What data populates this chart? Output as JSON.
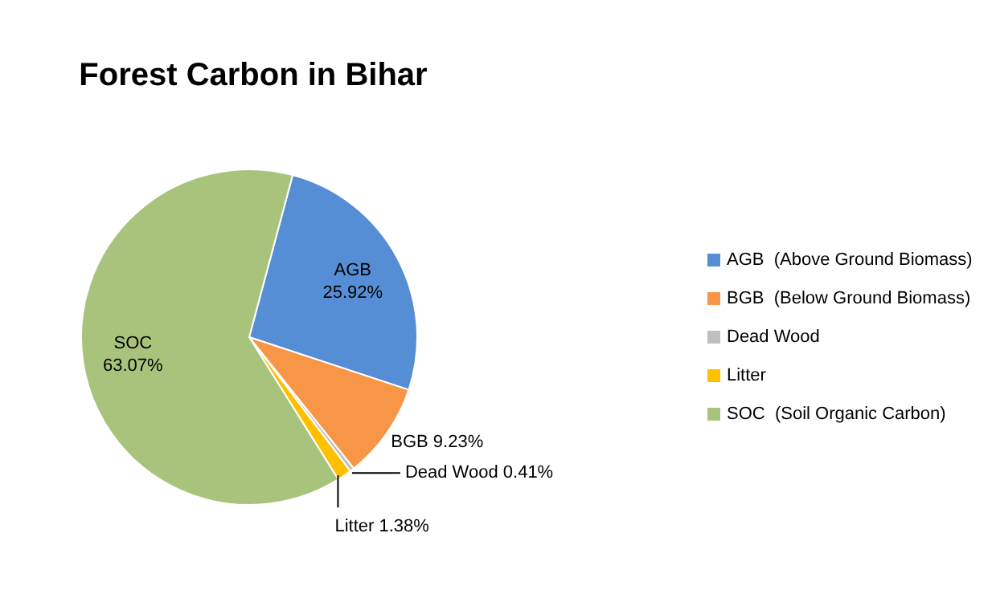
{
  "chart_data": {
    "type": "pie",
    "title": "Forest Carbon in Bihar",
    "categories": [
      "AGB  (Above Ground Biomass)",
      "BGB  (Below Ground Biomass)",
      "Dead Wood",
      "Litter",
      "SOC  (Soil Organic Carbon)"
    ],
    "values": [
      25.92,
      9.23,
      0.41,
      1.38,
      63.07
    ],
    "colors": [
      "#558ed5",
      "#f79646",
      "#bfbfbf",
      "#ffc000",
      "#a8c47c"
    ],
    "value_labels": [
      "AGB 25.92%",
      "BGB 9.23%",
      "Dead Wood 0.41%",
      "Litter 1.38%",
      "SOC 63.07%"
    ],
    "legend": "right"
  }
}
